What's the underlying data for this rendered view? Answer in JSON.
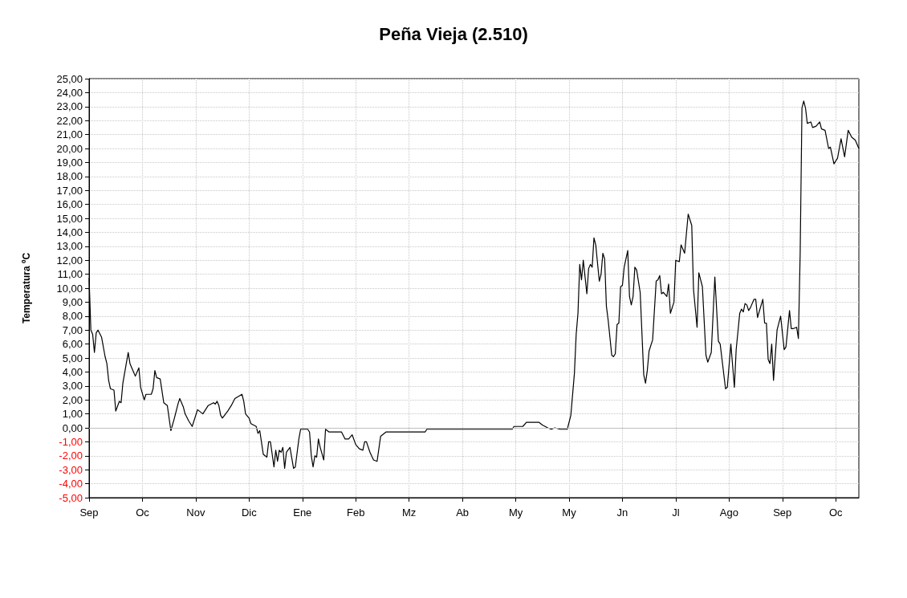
{
  "chart_data": {
    "type": "line",
    "title": "Peña Vieja (2.510)",
    "ylabel": "Temperatura ºC",
    "categories": [
      "Sep",
      null,
      null,
      null,
      null,
      null,
      null,
      null,
      null,
      null,
      null,
      null,
      null,
      null,
      null,
      null,
      null,
      null,
      null,
      null,
      null,
      null,
      null,
      null,
      null,
      null,
      null,
      null,
      null,
      null,
      "Oc",
      null,
      null,
      null,
      null,
      null,
      null,
      null,
      null,
      null,
      null,
      null,
      null,
      null,
      null,
      null,
      null,
      null,
      null,
      null,
      null,
      null,
      null,
      null,
      null,
      null,
      null,
      null,
      null,
      null,
      "Nov",
      null,
      null,
      null,
      null,
      null,
      null,
      null,
      null,
      null,
      null,
      null,
      null,
      null,
      null,
      null,
      null,
      null,
      null,
      null,
      null,
      null,
      null,
      null,
      null,
      null,
      null,
      null,
      null,
      null,
      "Dic",
      null,
      null,
      null,
      null,
      null,
      null,
      null,
      null,
      null,
      null,
      null,
      null,
      null,
      null,
      null,
      null,
      null,
      null,
      null,
      null,
      null,
      null,
      null,
      null,
      null,
      null,
      null,
      null,
      null,
      "Ene",
      null,
      null,
      null,
      null,
      null,
      null,
      null,
      null,
      null,
      null,
      null,
      null,
      null,
      null,
      null,
      null,
      null,
      null,
      null,
      null,
      null,
      null,
      null,
      null,
      null,
      null,
      null,
      null,
      null,
      "Feb",
      null,
      null,
      null,
      null,
      null,
      null,
      null,
      null,
      null,
      null,
      null,
      null,
      null,
      null,
      null,
      null,
      null,
      null,
      null,
      null,
      null,
      null,
      null,
      null,
      null,
      null,
      null,
      null,
      null,
      "Mz",
      null,
      null,
      null,
      null,
      null,
      null,
      null,
      null,
      null,
      null,
      null,
      null,
      null,
      null,
      null,
      null,
      null,
      null,
      null,
      null,
      null,
      null,
      null,
      null,
      null,
      null,
      null,
      null,
      null,
      "Ab",
      null,
      null,
      null,
      null,
      null,
      null,
      null,
      null,
      null,
      null,
      null,
      null,
      null,
      null,
      null,
      null,
      null,
      null,
      null,
      null,
      null,
      null,
      null,
      null,
      null,
      null,
      null,
      null,
      null,
      "My",
      null,
      null,
      null,
      null,
      null,
      null,
      null,
      null,
      null,
      null,
      null,
      null,
      null,
      null,
      null,
      null,
      null,
      null,
      null,
      null,
      null,
      null,
      null,
      null,
      null,
      null,
      null,
      null,
      null,
      "My",
      null,
      null,
      null,
      null,
      null,
      null,
      null,
      null,
      null,
      null,
      null,
      null,
      null,
      null,
      null,
      null,
      null,
      null,
      null,
      null,
      null,
      null,
      null,
      null,
      null,
      null,
      null,
      null,
      null,
      "Jn",
      null,
      null,
      null,
      null,
      null,
      null,
      null,
      null,
      null,
      null,
      null,
      null,
      null,
      null,
      null,
      null,
      null,
      null,
      null,
      null,
      null,
      null,
      null,
      null,
      null,
      null,
      null,
      null,
      null,
      "Jl",
      null,
      null,
      null,
      null,
      null,
      null,
      null,
      null,
      null,
      null,
      null,
      null,
      null,
      null,
      null,
      null,
      null,
      null,
      null,
      null,
      null,
      null,
      null,
      null,
      null,
      null,
      null,
      null,
      null,
      "Ago",
      null,
      null,
      null,
      null,
      null,
      null,
      null,
      null,
      null,
      null,
      null,
      null,
      null,
      null,
      null,
      null,
      null,
      null,
      null,
      null,
      null,
      null,
      null,
      null,
      null,
      null,
      null,
      null,
      null,
      "Sep",
      null,
      null,
      null,
      null,
      null,
      null,
      null,
      null,
      null,
      null,
      null,
      null,
      null,
      null,
      null,
      null,
      null,
      null,
      null,
      null,
      null,
      null,
      null,
      null,
      null,
      null,
      null,
      null,
      null,
      "Oc",
      null,
      null,
      null,
      null,
      null,
      null,
      null,
      null,
      null,
      null,
      null,
      null,
      null
    ],
    "series": [
      {
        "color": "#000000",
        "values": [
          10.7,
          7.0,
          6.7,
          5.4,
          6.8,
          7.0,
          null,
          6.5,
          null,
          5.1,
          4.6,
          3.4,
          2.8,
          null,
          2.7,
          1.2,
          null,
          1.9,
          1.8,
          3.2,
          null,
          null,
          5.4,
          4.6,
          4.3,
          null,
          3.7,
          null,
          4.3,
          2.9,
          null,
          2.0,
          2.4,
          null,
          null,
          2.4,
          2.8,
          4.1,
          3.6,
          null,
          3.5,
          null,
          1.8,
          null,
          1.6,
          null,
          -0.2,
          null,
          0.7,
          null,
          1.7,
          2.1,
          null,
          1.5,
          1.0,
          null,
          0.5,
          null,
          0.1,
          null,
          null,
          1.3,
          null,
          null,
          1.0,
          null,
          null,
          1.6,
          null,
          null,
          1.8,
          1.7,
          1.9,
          1.6,
          0.9,
          0.7,
          null,
          null,
          1.2,
          null,
          1.6,
          null,
          2.1,
          null,
          null,
          null,
          2.4,
          1.9,
          1.0,
          null,
          0.7,
          0.3,
          null,
          null,
          0.1,
          -0.4,
          -0.2,
          null,
          -1.9,
          null,
          -2.1,
          -1.0,
          -1.0,
          null,
          -2.8,
          -1.6,
          -2.4,
          -1.6,
          -1.75,
          -1.4,
          -2.9,
          -1.75,
          null,
          -1.4,
          null,
          -2.9,
          -2.8,
          null,
          -0.8,
          -0.1,
          null,
          null,
          null,
          -0.1,
          -0.3,
          -2.0,
          -2.8,
          -2.0,
          -2.1,
          -0.8,
          -1.4,
          null,
          -2.3,
          -0.1,
          null,
          -0.3,
          -0.3,
          -0.3,
          -0.3,
          -0.3,
          -0.3,
          -0.3,
          -0.3,
          null,
          -0.8,
          null,
          -0.8,
          null,
          -0.5,
          null,
          -1.2,
          null,
          -1.5,
          null,
          -1.6,
          -1.0,
          -1.0,
          null,
          -1.75,
          null,
          -2.3,
          null,
          -2.4,
          null,
          -0.6,
          null,
          null,
          -0.3,
          -0.3,
          -0.3,
          -0.3,
          -0.3,
          -0.3,
          -0.3,
          -0.3,
          -0.3,
          -0.3,
          -0.3,
          -0.3,
          -0.3,
          -0.3,
          -0.3,
          -0.3,
          -0.3,
          -0.3,
          -0.3,
          -0.3,
          -0.3,
          -0.3,
          -0.3,
          -0.1,
          -0.1,
          -0.1,
          -0.1,
          -0.1,
          -0.1,
          -0.1,
          -0.1,
          -0.1,
          -0.1,
          -0.1,
          -0.1,
          -0.1,
          -0.1,
          -0.1,
          -0.1,
          -0.1,
          -0.1,
          -0.1,
          -0.1,
          -0.1,
          -0.1,
          -0.1,
          -0.1,
          -0.1,
          -0.1,
          -0.1,
          -0.1,
          -0.1,
          -0.1,
          -0.1,
          -0.1,
          -0.1,
          -0.1,
          -0.1,
          -0.1,
          -0.1,
          -0.1,
          -0.1,
          -0.1,
          -0.1,
          -0.1,
          -0.1,
          -0.1,
          -0.1,
          -0.1,
          -0.1,
          -0.1,
          -0.1,
          0.1,
          0.1,
          0.1,
          0.1,
          0.1,
          0.1,
          null,
          0.4,
          0.4,
          0.4,
          0.4,
          0.4,
          0.4,
          0.4,
          0.4,
          null,
          0.2,
          null,
          null,
          0.0,
          null,
          -0.1,
          null,
          0.0,
          null,
          null,
          -0.1,
          -0.1,
          -0.1,
          -0.1,
          -0.1,
          null,
          0.9,
          null,
          3.9,
          6.7,
          8.2,
          11.7,
          10.6,
          12.0,
          null,
          9.6,
          11.4,
          11.7,
          11.5,
          13.6,
          13.1,
          null,
          10.5,
          11.0,
          12.5,
          12.1,
          8.7,
          7.7,
          null,
          5.2,
          5.1,
          5.3,
          7.4,
          7.5,
          10.1,
          10.2,
          11.5,
          null,
          12.7,
          9.4,
          8.8,
          9.4,
          11.5,
          11.3,
          null,
          9.7,
          null,
          3.8,
          3.2,
          4.1,
          5.5,
          null,
          6.3,
          null,
          10.5,
          10.6,
          10.9,
          9.6,
          9.7,
          null,
          9.4,
          10.3,
          8.2,
          null,
          9.0,
          12.0,
          null,
          11.9,
          13.1,
          null,
          12.5,
          null,
          15.3,
          null,
          14.5,
          9.9,
          null,
          7.2,
          11.1,
          null,
          10.1,
          null,
          5.2,
          4.7,
          null,
          5.4,
          null,
          10.8,
          null,
          6.2,
          6.0,
          null,
          null,
          2.8,
          2.9,
          null,
          6.0,
          null,
          2.9,
          5.6,
          null,
          8.2,
          8.5,
          8.3,
          8.9,
          8.8,
          8.4,
          8.6,
          null,
          9.2,
          9.2,
          7.9,
          null,
          null,
          9.2,
          7.5,
          7.5,
          4.9,
          4.6,
          6.0,
          3.4,
          null,
          7.0,
          null,
          8.0,
          null,
          5.6,
          5.8,
          null,
          8.4,
          7.1,
          7.1,
          null,
          7.2,
          6.4,
          12.5,
          22.9,
          23.4,
          22.9,
          21.8,
          null,
          21.9,
          21.5,
          null,
          21.6,
          null,
          21.9,
          21.4,
          null,
          21.3,
          null,
          20.0,
          20.1,
          null,
          18.9,
          null,
          19.3,
          null,
          20.7,
          null,
          19.4,
          null,
          21.3,
          null,
          20.8,
          null,
          20.6,
          null,
          20.0
        ]
      }
    ],
    "ylim": [
      -5,
      25
    ],
    "yticks": [
      {
        "value": -5,
        "label": "-5,00"
      },
      {
        "value": -4,
        "label": "-4,00"
      },
      {
        "value": -3,
        "label": "-3,00"
      },
      {
        "value": -2,
        "label": "-2,00"
      },
      {
        "value": -1,
        "label": "-1,00"
      },
      {
        "value": 0,
        "label": "0,00"
      },
      {
        "value": 1,
        "label": "1,00"
      },
      {
        "value": 2,
        "label": "2,00"
      },
      {
        "value": 3,
        "label": "3,00"
      },
      {
        "value": 4,
        "label": "4,00"
      },
      {
        "value": 5,
        "label": "5,00"
      },
      {
        "value": 6,
        "label": "6,00"
      },
      {
        "value": 7,
        "label": "7,00"
      },
      {
        "value": 8,
        "label": "8,00"
      },
      {
        "value": 9,
        "label": "9,00"
      },
      {
        "value": 10,
        "label": "10,00"
      },
      {
        "value": 11,
        "label": "11,00"
      },
      {
        "value": 12,
        "label": "12,00"
      },
      {
        "value": 13,
        "label": "13,00"
      },
      {
        "value": 14,
        "label": "14,00"
      },
      {
        "value": 15,
        "label": "15,00"
      },
      {
        "value": 16,
        "label": "16,00"
      },
      {
        "value": 17,
        "label": "17,00"
      },
      {
        "value": 18,
        "label": "18,00"
      },
      {
        "value": 19,
        "label": "19,00"
      },
      {
        "value": 20,
        "label": "20,00"
      },
      {
        "value": 21,
        "label": "21,00"
      },
      {
        "value": 22,
        "label": "22,00"
      },
      {
        "value": 23,
        "label": "23,00"
      },
      {
        "value": 24,
        "label": "24,00"
      },
      {
        "value": 25,
        "label": "25,00"
      }
    ],
    "ref_lines": [
      {
        "axis": "y",
        "value": 0,
        "color": "#bfbfbf"
      }
    ],
    "grid": true,
    "marker": "none",
    "line_style": "solid"
  }
}
